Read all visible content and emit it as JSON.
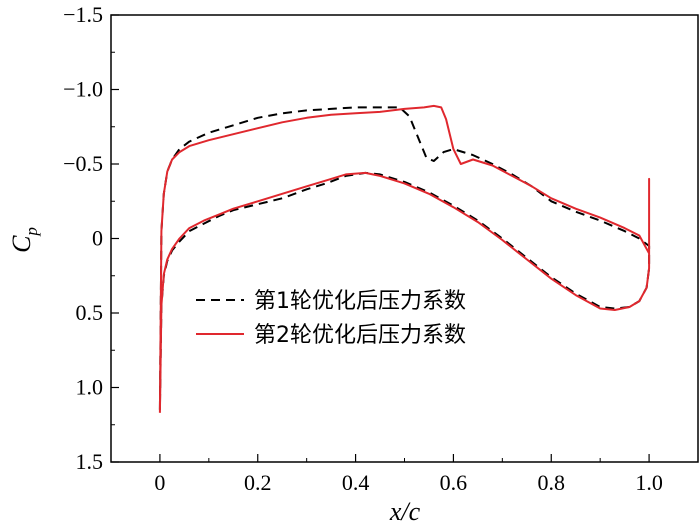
{
  "chart_data": {
    "type": "line",
    "title": "",
    "xlabel": "x/c",
    "ylabel": "C",
    "ylabel_subscript": "p",
    "xlim": [
      -0.1,
      1.1
    ],
    "ylim": [
      -1.5,
      1.5
    ],
    "y_inverted": true,
    "grid": false,
    "legend_position": "center-left",
    "x_ticks": [
      0,
      0.2,
      0.4,
      0.6,
      0.8,
      1.0
    ],
    "x_tick_labels": [
      "0",
      "0.2",
      "0.4",
      "0.6",
      "0.8",
      "1.0"
    ],
    "y_ticks": [
      -1.5,
      -1.0,
      -0.5,
      0,
      0.5,
      1.0,
      1.5
    ],
    "y_tick_labels": [
      "−1.5",
      "−1.0",
      "−0.5",
      "0",
      "0.5",
      "1.0",
      "1.5"
    ],
    "series": [
      {
        "name": "第1轮优化后压力系数",
        "color": "#000000",
        "style": "dashed",
        "x": [
          0.0,
          0.003,
          0.008,
          0.015,
          0.025,
          0.04,
          0.06,
          0.1,
          0.15,
          0.2,
          0.25,
          0.3,
          0.35,
          0.4,
          0.45,
          0.49,
          0.51,
          0.53,
          0.545,
          0.56,
          0.58,
          0.6,
          0.64,
          0.68,
          0.72,
          0.76,
          0.8,
          0.85,
          0.9,
          0.95,
          0.98,
          1.0,
          1.0,
          0.995,
          0.98,
          0.96,
          0.93,
          0.9,
          0.85,
          0.8,
          0.75,
          0.7,
          0.65,
          0.6,
          0.55,
          0.5,
          0.45,
          0.42,
          0.38,
          0.34,
          0.3,
          0.25,
          0.2,
          0.15,
          0.12,
          0.09,
          0.06,
          0.04,
          0.025,
          0.015,
          0.008,
          0.003,
          0.0
        ],
        "y": [
          1.15,
          -0.05,
          -0.3,
          -0.45,
          -0.53,
          -0.6,
          -0.65,
          -0.71,
          -0.76,
          -0.81,
          -0.84,
          -0.86,
          -0.87,
          -0.88,
          -0.88,
          -0.88,
          -0.82,
          -0.66,
          -0.54,
          -0.52,
          -0.58,
          -0.6,
          -0.56,
          -0.5,
          -0.43,
          -0.35,
          -0.25,
          -0.18,
          -0.12,
          -0.05,
          0.0,
          0.05,
          0.2,
          0.33,
          0.42,
          0.46,
          0.47,
          0.46,
          0.37,
          0.26,
          0.13,
          0.0,
          -0.12,
          -0.22,
          -0.31,
          -0.38,
          -0.43,
          -0.44,
          -0.42,
          -0.37,
          -0.33,
          -0.27,
          -0.23,
          -0.19,
          -0.15,
          -0.1,
          -0.05,
          0.02,
          0.08,
          0.15,
          0.25,
          0.45,
          1.15
        ]
      },
      {
        "name": "第2轮优化后压力系数",
        "color": "#e0282e",
        "style": "solid",
        "x": [
          0.0,
          0.003,
          0.008,
          0.015,
          0.025,
          0.04,
          0.06,
          0.1,
          0.15,
          0.2,
          0.25,
          0.3,
          0.35,
          0.4,
          0.45,
          0.5,
          0.54,
          0.56,
          0.575,
          0.585,
          0.6,
          0.615,
          0.64,
          0.68,
          0.72,
          0.76,
          0.8,
          0.85,
          0.9,
          0.95,
          0.98,
          1.0,
          1.0,
          1.0,
          0.995,
          0.98,
          0.96,
          0.93,
          0.9,
          0.85,
          0.8,
          0.75,
          0.7,
          0.65,
          0.6,
          0.55,
          0.5,
          0.45,
          0.42,
          0.38,
          0.34,
          0.3,
          0.25,
          0.2,
          0.15,
          0.12,
          0.09,
          0.06,
          0.04,
          0.025,
          0.015,
          0.008,
          0.003,
          0.0
        ],
        "y": [
          1.17,
          -0.05,
          -0.3,
          -0.45,
          -0.53,
          -0.58,
          -0.62,
          -0.66,
          -0.7,
          -0.74,
          -0.78,
          -0.81,
          -0.83,
          -0.84,
          -0.85,
          -0.87,
          -0.88,
          -0.89,
          -0.88,
          -0.8,
          -0.6,
          -0.5,
          -0.53,
          -0.49,
          -0.42,
          -0.35,
          -0.27,
          -0.2,
          -0.14,
          -0.07,
          -0.02,
          0.1,
          -0.4,
          0.2,
          0.33,
          0.42,
          0.46,
          0.48,
          0.47,
          0.38,
          0.27,
          0.14,
          0.01,
          -0.11,
          -0.21,
          -0.3,
          -0.37,
          -0.42,
          -0.44,
          -0.43,
          -0.39,
          -0.35,
          -0.3,
          -0.25,
          -0.2,
          -0.16,
          -0.12,
          -0.07,
          0.0,
          0.07,
          0.14,
          0.24,
          0.45,
          1.17
        ]
      }
    ]
  }
}
